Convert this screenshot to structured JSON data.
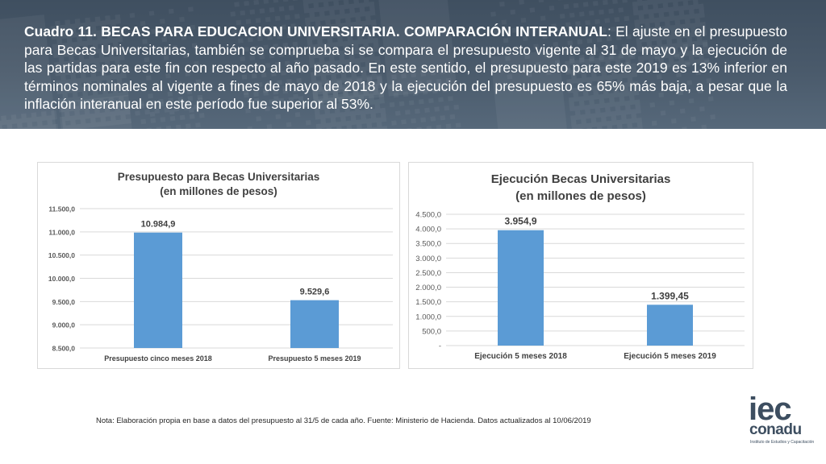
{
  "header": {
    "bold_lead": "Cuadro 11. BECAS PARA EDUCACION UNIVERSITARIA. COMPARACIÓN INTERANUAL",
    "body": ": El ajuste en el presupuesto para Becas Universitarias, también se comprueba si se compara el presupuesto vigente al 31 de mayo y la ejecución de las partidas para este fin con respecto al año pasado. En este sentido, el presupuesto para este 2019 es 13% inferior en términos nominales al vigente a fines de mayo de 2018 y la ejecución del presupuesto es 65% más baja, a pesar que la inflación interanual en este período fue superior al 53%."
  },
  "chart_data": [
    {
      "type": "bar",
      "title_line1": "Presupuesto para Becas Universitarias",
      "title_line2": "(en millones de pesos)",
      "categories": [
        "Presupuesto cinco meses 2018",
        "Presupuesto 5 meses 2019"
      ],
      "values": [
        10984.9,
        9529.6
      ],
      "value_labels": [
        "10.984,9",
        "9.529,6"
      ],
      "ylim": [
        8500,
        11500
      ],
      "yticks": [
        8500,
        9000,
        9500,
        10000,
        10500,
        11000,
        11500
      ],
      "ytick_labels": [
        "8.500,0",
        "9.000,0",
        "9.500,0",
        "10.000,0",
        "10.500,0",
        "11.000,0",
        "11.500,0"
      ],
      "grid": true,
      "bar_color": "#5b9bd5"
    },
    {
      "type": "bar",
      "title_line1": "Ejecución Becas Universitarias",
      "title_line2": "(en millones de pesos)",
      "categories": [
        "Ejecución 5 meses 2018",
        "Ejecución 5 meses 2019"
      ],
      "values": [
        3954.9,
        1399.45
      ],
      "value_labels": [
        "3.954,9",
        "1.399,45"
      ],
      "ylim": [
        0,
        4500
      ],
      "yticks": [
        0,
        500,
        1000,
        1500,
        2000,
        2500,
        3000,
        3500,
        4000,
        4500
      ],
      "ytick_labels": [
        "-",
        "500,0",
        "1.000,0",
        "1.500,0",
        "2.000,0",
        "2.500,0",
        "3.000,0",
        "3.500,0",
        "4.000,0",
        "4.500,0"
      ],
      "grid": true,
      "bar_color": "#5b9bd5"
    }
  ],
  "note": "Nota: Elaboración propia en base a datos del presupuesto al 31/5 de cada año. Fuente: Ministerio de Hacienda. Datos actualizados al 10/06/2019",
  "logo": {
    "iec": "iec",
    "conadu": "conadu",
    "sub": "Instituto de Estudios y Capacitación"
  }
}
